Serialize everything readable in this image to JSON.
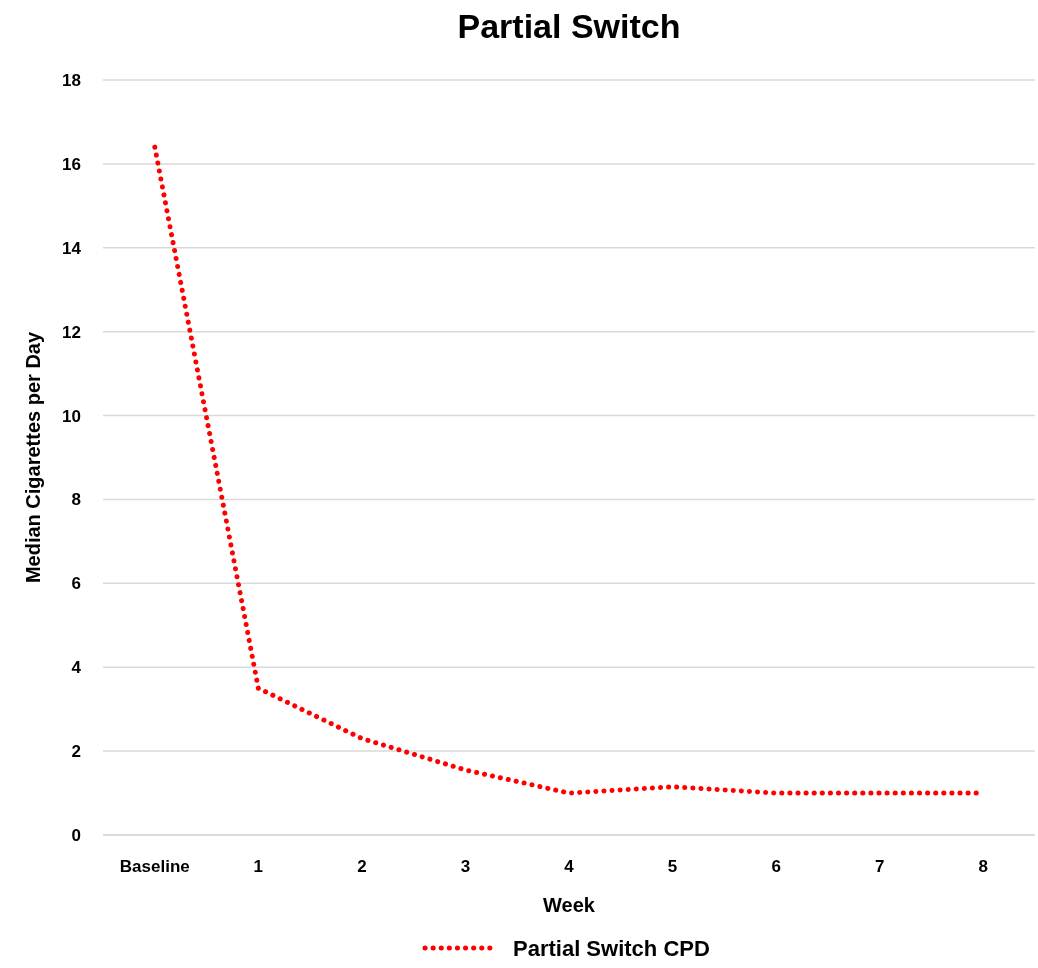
{
  "chart_data": {
    "type": "line",
    "title": "Partial Switch",
    "xlabel": "Week",
    "ylabel": "Median Cigarettes per Day",
    "categories": [
      "Baseline",
      "1",
      "2",
      "3",
      "4",
      "5",
      "6",
      "7",
      "8"
    ],
    "series": [
      {
        "name": "Partial Switch CPD",
        "color": "#ff0000",
        "values": [
          16.4,
          3.5,
          2.3,
          1.55,
          1.0,
          1.15,
          1.0,
          1.0,
          1.0
        ]
      }
    ],
    "ylim": [
      0,
      18
    ],
    "yticks": [
      0,
      2,
      4,
      6,
      8,
      10,
      12,
      14,
      16,
      18
    ],
    "grid": "y",
    "legend": "bottom",
    "marker": "none",
    "line_style": "dotted"
  }
}
